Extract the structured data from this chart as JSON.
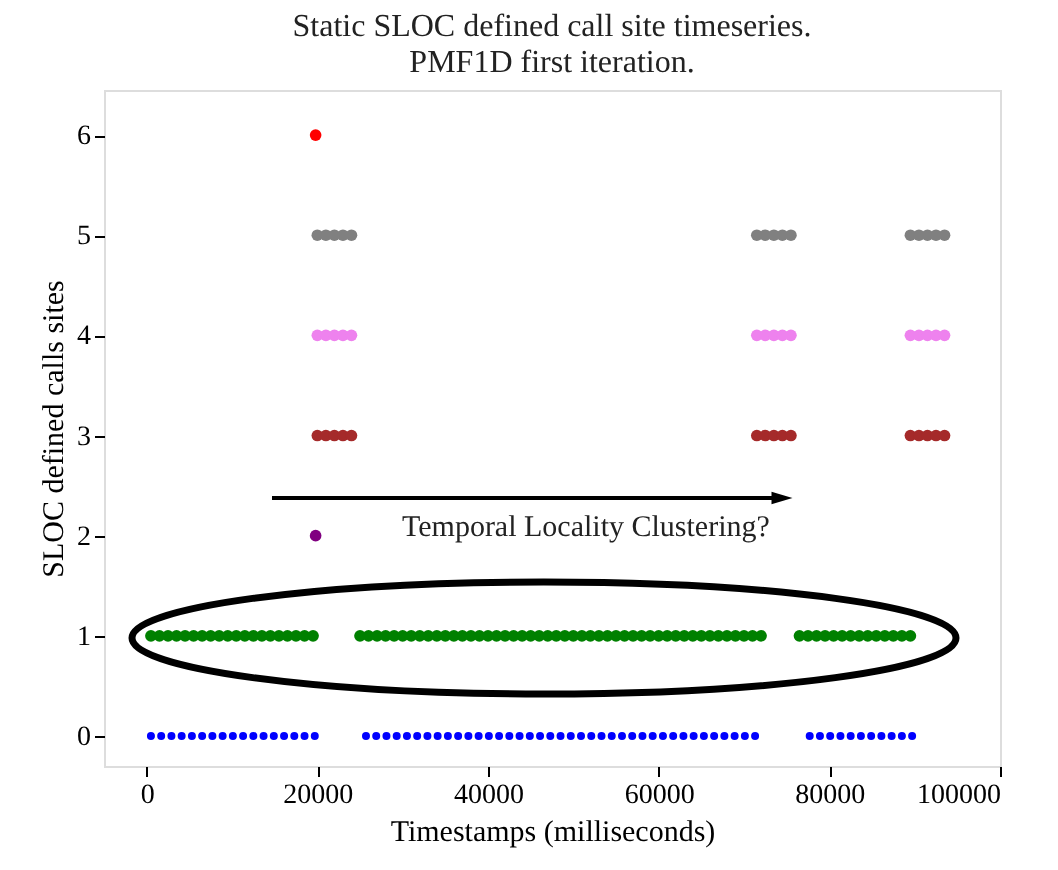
{
  "chart_data": {
    "type": "scatter",
    "title": [
      "Static SLOC defined call site timeseries.",
      "PMF1D first iteration."
    ],
    "xlabel": "Timestamps (milliseconds)",
    "ylabel": "SLOC defined calls sites",
    "xlim": [
      -5000,
      100000
    ],
    "xticks": [
      0,
      20000,
      40000,
      60000,
      80000,
      100000
    ],
    "ylim": [
      -0.3,
      6.45
    ],
    "yticks": [
      0,
      1,
      2,
      3,
      4,
      5,
      6
    ],
    "marker": "circle",
    "annotations": [
      "Temporal Locality Clustering?"
    ],
    "series": [
      {
        "color": "#0000ff",
        "x": [
          500,
          1700,
          2900,
          4100,
          5300,
          6500,
          7700,
          8900,
          10100,
          11300,
          12500,
          13700,
          14900,
          16100,
          17300,
          18500,
          19700,
          25700,
          26900,
          28100,
          29300,
          30500,
          31700,
          32900,
          34100,
          35300,
          36500,
          37700,
          38900,
          40100,
          41300,
          42500,
          43700,
          44900,
          46100,
          47300,
          48500,
          49700,
          50900,
          52100,
          53300,
          54500,
          55700,
          56900,
          58100,
          59300,
          60500,
          61700,
          62900,
          64100,
          65300,
          66500,
          67700,
          68900,
          70100,
          71300,
          77700,
          78900,
          80100,
          81300,
          82500,
          83700,
          84900,
          86100,
          87300,
          88500,
          89700
        ],
        "values": [
          0,
          0,
          0,
          0,
          0,
          0,
          0,
          0,
          0,
          0,
          0,
          0,
          0,
          0,
          0,
          0,
          0,
          0,
          0,
          0,
          0,
          0,
          0,
          0,
          0,
          0,
          0,
          0,
          0,
          0,
          0,
          0,
          0,
          0,
          0,
          0,
          0,
          0,
          0,
          0,
          0,
          0,
          0,
          0,
          0,
          0,
          0,
          0,
          0,
          0,
          0,
          0,
          0,
          0,
          0,
          0,
          0,
          0,
          0,
          0,
          0,
          0,
          0,
          0,
          0,
          0,
          0
        ]
      },
      {
        "color": "#008000",
        "x": [
          500,
          1500,
          2500,
          3500,
          4500,
          5500,
          6500,
          7500,
          8500,
          9500,
          10500,
          11500,
          12500,
          13500,
          14500,
          15500,
          16500,
          17500,
          18500,
          19500,
          25000,
          26000,
          27000,
          28000,
          29000,
          30000,
          31000,
          32000,
          33000,
          34000,
          35000,
          36000,
          37000,
          38000,
          39000,
          40000,
          41000,
          42000,
          43000,
          44000,
          45000,
          46000,
          47000,
          48000,
          49000,
          50000,
          51000,
          52000,
          53000,
          54000,
          55000,
          56000,
          57000,
          58000,
          59000,
          60000,
          61000,
          62000,
          63000,
          64000,
          65000,
          66000,
          67000,
          68000,
          69000,
          70000,
          71000,
          72000,
          76500,
          77500,
          78500,
          79500,
          80500,
          81500,
          82500,
          83500,
          84500,
          85500,
          86500,
          87500,
          88500,
          89500
        ],
        "values": [
          1,
          1,
          1,
          1,
          1,
          1,
          1,
          1,
          1,
          1,
          1,
          1,
          1,
          1,
          1,
          1,
          1,
          1,
          1,
          1,
          1,
          1,
          1,
          1,
          1,
          1,
          1,
          1,
          1,
          1,
          1,
          1,
          1,
          1,
          1,
          1,
          1,
          1,
          1,
          1,
          1,
          1,
          1,
          1,
          1,
          1,
          1,
          1,
          1,
          1,
          1,
          1,
          1,
          1,
          1,
          1,
          1,
          1,
          1,
          1,
          1,
          1,
          1,
          1,
          1,
          1,
          1,
          1,
          1,
          1,
          1,
          1,
          1,
          1,
          1,
          1,
          1,
          1,
          1,
          1,
          1,
          1
        ]
      },
      {
        "color": "#800080",
        "x": [
          19800
        ],
        "values": [
          2
        ]
      },
      {
        "color": "#a52a2a",
        "x": [
          20000,
          21000,
          22000,
          23000,
          24000,
          71500,
          72500,
          73500,
          74500,
          75500,
          89500,
          90500,
          91500,
          92500,
          93500
        ],
        "values": [
          3,
          3,
          3,
          3,
          3,
          3,
          3,
          3,
          3,
          3,
          3,
          3,
          3,
          3,
          3
        ]
      },
      {
        "color": "#ee82ee",
        "x": [
          20000,
          21000,
          22000,
          23000,
          24000,
          71500,
          72500,
          73500,
          74500,
          75500,
          89500,
          90500,
          91500,
          92500,
          93500
        ],
        "values": [
          4,
          4,
          4,
          4,
          4,
          4,
          4,
          4,
          4,
          4,
          4,
          4,
          4,
          4,
          4
        ]
      },
      {
        "color": "#808080",
        "x": [
          20000,
          21000,
          22000,
          23000,
          24000,
          71500,
          72500,
          73500,
          74500,
          75500,
          89500,
          90500,
          91500,
          92500,
          93500
        ],
        "values": [
          5,
          5,
          5,
          5,
          5,
          5,
          5,
          5,
          5,
          5,
          5,
          5,
          5,
          5,
          5
        ]
      },
      {
        "color": "#ff0000",
        "x": [
          19800
        ],
        "values": [
          6
        ]
      }
    ]
  }
}
